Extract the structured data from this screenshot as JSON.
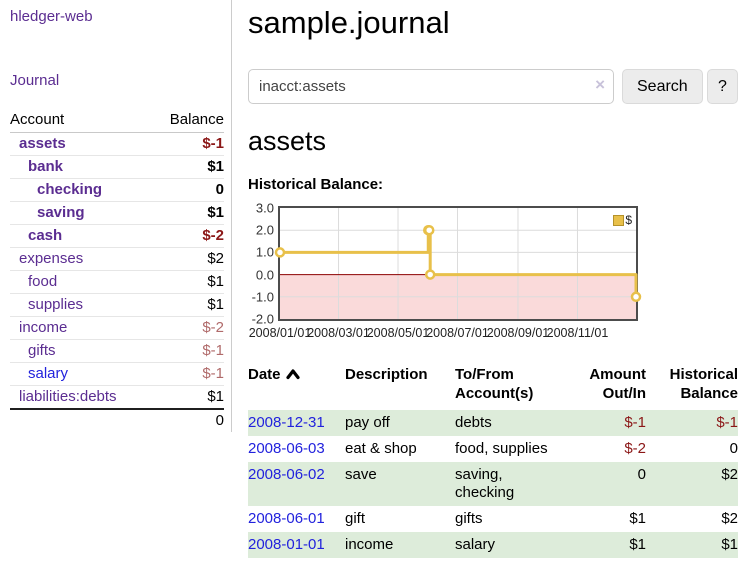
{
  "colors": {
    "link_purple": "#5b2d91",
    "link_blue": "#2222dd",
    "neg_strong": "#8b1717",
    "neg_soft": "#b06a6a",
    "row_green": "#ddecda",
    "chart_line": "#e8c04a",
    "chart_neg_bg": "#fadada",
    "chart_zero_line": "#8b0000",
    "chart_grid": "#dcdcdc"
  },
  "brand": "hledger-web",
  "nav": {
    "journal": "Journal"
  },
  "sidebar": {
    "headers": {
      "account": "Account",
      "balance": "Balance"
    },
    "rows": [
      {
        "name": "assets",
        "balance": "$-1"
      },
      {
        "name": "bank",
        "balance": "$1"
      },
      {
        "name": "checking",
        "balance": "0"
      },
      {
        "name": "saving",
        "balance": "$1"
      },
      {
        "name": "cash",
        "balance": "$-2"
      },
      {
        "name": "expenses",
        "balance": "$2"
      },
      {
        "name": "food",
        "balance": "$1"
      },
      {
        "name": "supplies",
        "balance": "$1"
      },
      {
        "name": "income",
        "balance": "$-2"
      },
      {
        "name": "gifts",
        "balance": "$-1"
      },
      {
        "name": "salary",
        "balance": "$-1"
      },
      {
        "name": "liabilities:debts",
        "balance": "$1"
      }
    ],
    "total": "0"
  },
  "header": {
    "title": "sample.journal"
  },
  "search": {
    "value": "inacct:assets",
    "clear_icon": "×",
    "button_label": "Search",
    "help_label": "?"
  },
  "account_page": {
    "heading": "assets",
    "chart_label": "Historical Balance:"
  },
  "chart_data": {
    "type": "line",
    "title": "Historical Balance",
    "step": "after",
    "grid": true,
    "legend": {
      "label": "$",
      "position": "top-right"
    },
    "ylim": [
      -2,
      3
    ],
    "y_ticks": [
      "3.0",
      "2.0",
      "1.0",
      "0.0",
      "-1.0",
      "-2.0"
    ],
    "x_ticks": [
      "2008/01/01",
      "2008/03/01",
      "2008/05/01",
      "2008/07/01",
      "2008/09/01",
      "2008/11/01"
    ],
    "x_tick_days": [
      0,
      60,
      121,
      182,
      244,
      305
    ],
    "x_domain_days": [
      0,
      365
    ],
    "series": [
      {
        "name": "$",
        "points": [
          {
            "date": "2008-01-01",
            "day": 0,
            "value": 1
          },
          {
            "date": "2008-06-01",
            "day": 152,
            "value": 2
          },
          {
            "date": "2008-06-02",
            "day": 153,
            "value": 2
          },
          {
            "date": "2008-06-03",
            "day": 154,
            "value": 0
          },
          {
            "date": "2008-12-31",
            "day": 365,
            "value": -1
          }
        ]
      }
    ]
  },
  "register": {
    "headers": {
      "date": "Date",
      "description": "Description",
      "tofrom": "To/From Account(s)",
      "amount": "Amount Out/In",
      "balance": "Historical Balance"
    },
    "rows": [
      {
        "date": "2008-12-31",
        "description": "pay off",
        "accounts": "debts",
        "amount": "$-1",
        "balance": "$-1"
      },
      {
        "date": "2008-06-03",
        "description": "eat & shop",
        "accounts": "food, supplies",
        "amount": "$-2",
        "balance": "0"
      },
      {
        "date": "2008-06-02",
        "description": "save",
        "accounts": "saving, checking",
        "amount": "0",
        "balance": "$2"
      },
      {
        "date": "2008-06-01",
        "description": "gift",
        "accounts": "gifts",
        "amount": "$1",
        "balance": "$2"
      },
      {
        "date": "2008-01-01",
        "description": "income",
        "accounts": "salary",
        "amount": "$1",
        "balance": "$1"
      }
    ]
  }
}
